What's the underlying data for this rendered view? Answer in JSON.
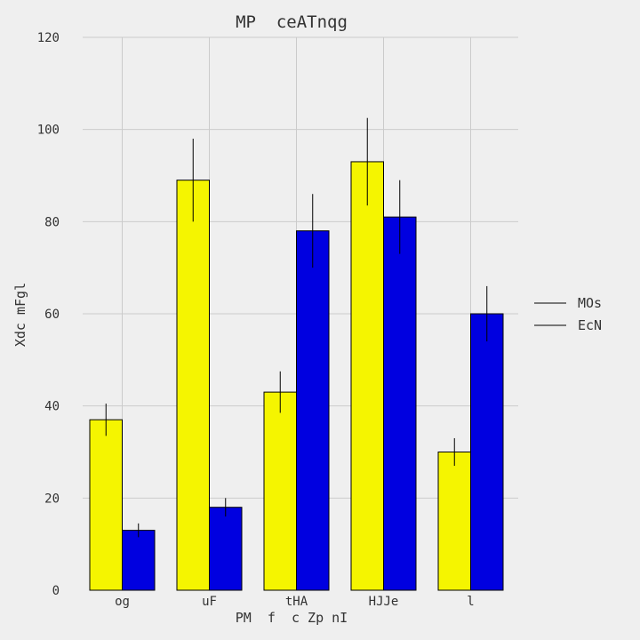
{
  "chart_data": {
    "type": "bar",
    "title": "MP  ceATnqg",
    "xlabel": "PM  f  c Zp nI",
    "ylabel": "Xdc mFgl",
    "categories": [
      "og",
      "uF",
      "tHA",
      "HJJe",
      "l"
    ],
    "ylim": [
      0,
      120
    ],
    "yticks": [
      0,
      20,
      40,
      60,
      80,
      100,
      120
    ],
    "grid": true,
    "legend_position": "right",
    "series": [
      {
        "name": "MOs",
        "color": "#f5f500",
        "values": [
          37,
          89,
          43,
          93,
          30
        ],
        "errors": [
          3.5,
          9,
          4.5,
          9.5,
          3
        ]
      },
      {
        "name": "EcN",
        "color": "#0000e0",
        "values": [
          13,
          18,
          78,
          81,
          60
        ],
        "errors": [
          1.5,
          2,
          8,
          8,
          6
        ]
      }
    ]
  }
}
